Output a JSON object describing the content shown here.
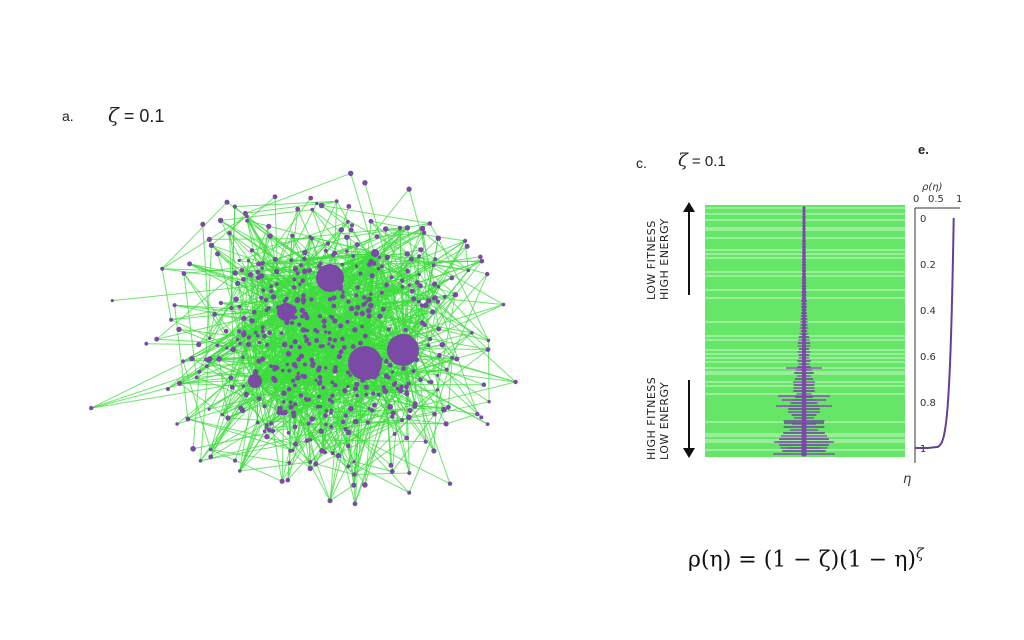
{
  "panel_a": {
    "label": "a.",
    "zeta_symbol": "ζ",
    "zeta_text": " = 0.1"
  },
  "panel_c": {
    "label": "c.",
    "zeta_symbol": "ζ",
    "zeta_text": " = 0.1",
    "top_side_line1": "LOW FITNESS",
    "top_side_line2": "HIGH ENERGY",
    "bottom_side_line1": "HIGH FITNESS",
    "bottom_side_line2": "LOW ENERGY"
  },
  "panel_e": {
    "label": "e.",
    "ylabel": "ρ(η)",
    "xlabel": "η",
    "top_ticks": [
      "0",
      "0.5",
      "1"
    ],
    "left_ticks": [
      "0",
      "0.2",
      "0.4",
      "0.6",
      "0.8",
      "1"
    ]
  },
  "formula": {
    "text_left": "ρ(η) = (1 − ζ)(1 − η)",
    "exponent": "ζ"
  },
  "colors": {
    "node": "#7b4aa6",
    "edge": "#3ddc3d",
    "curve": "#6a3d9a"
  },
  "chart_data": {
    "type": "line",
    "title": "",
    "xlabel": "η",
    "ylabel": "ρ(η)",
    "zeta": 0.1,
    "x": [
      0,
      0.1,
      0.2,
      0.3,
      0.4,
      0.5,
      0.6,
      0.7,
      0.8,
      0.9,
      0.95,
      0.98,
      1.0
    ],
    "y": [
      0.9,
      0.891,
      0.88,
      0.868,
      0.855,
      0.84,
      0.822,
      0.799,
      0.768,
      0.712,
      0.667,
      0.609,
      0
    ]
  }
}
